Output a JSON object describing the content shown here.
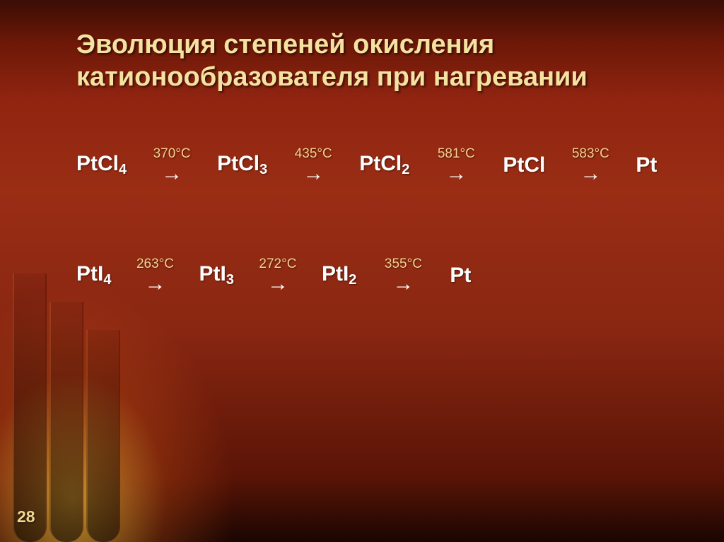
{
  "title": "Эволюция степеней окисления катионообразователя при нагревании",
  "slide_number": "28",
  "reactions": [
    {
      "steps": [
        {
          "compound": "PtCl",
          "sub": "4"
        },
        {
          "compound": "PtCl",
          "sub": "3"
        },
        {
          "compound": "PtCl",
          "sub": "2"
        },
        {
          "compound": "PtCl",
          "sub": ""
        },
        {
          "compound": "Pt",
          "sub": ""
        }
      ],
      "temps": [
        "370°С",
        "435°С",
        "581°С",
        "583°С"
      ],
      "arrow_widths": [
        108,
        110,
        112,
        108
      ]
    },
    {
      "steps": [
        {
          "compound": "PtI",
          "sub": "4"
        },
        {
          "compound": "PtI",
          "sub": "3"
        },
        {
          "compound": "PtI",
          "sub": "2"
        },
        {
          "compound": "Pt",
          "sub": ""
        }
      ],
      "temps": [
        "263°С",
        "272°С",
        "355°С"
      ],
      "arrow_widths": [
        104,
        104,
        112
      ]
    }
  ],
  "style": {
    "title_color": "#f6e2a0",
    "title_fontsize": 38,
    "temp_color": "#f4cf8f",
    "temp_fontsize": 19,
    "compound_fontsize": 30,
    "text_color": "#ffffff",
    "arrow_glyph": "→",
    "background_gradient": [
      "#3a0d05",
      "#6e1808",
      "#8f2410",
      "#9a2d14",
      "#8a2712",
      "#5a1406",
      "#1a0602"
    ],
    "glow_color": "rgba(255,200,60,0.7)"
  }
}
